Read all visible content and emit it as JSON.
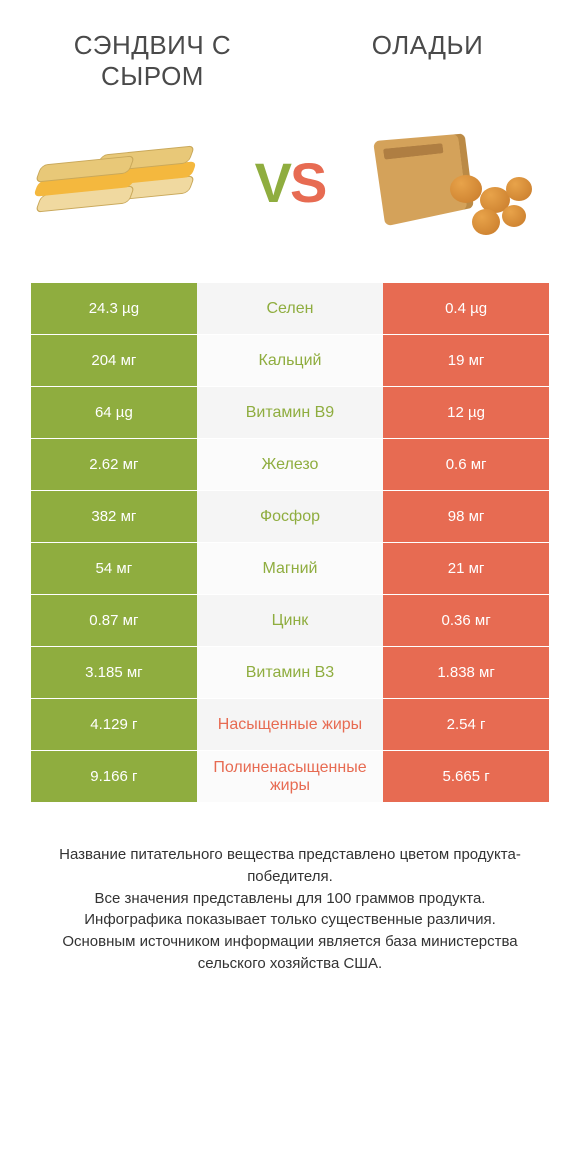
{
  "colors": {
    "left": "#8fad3f",
    "right": "#e76b52",
    "mid_bg_odd": "#f5f5f5",
    "mid_bg_even": "#fbfbfb",
    "text": "#333333"
  },
  "header": {
    "left_title": "СЭНДВИЧ С СЫРОМ",
    "right_title": "ОЛАДЬИ",
    "vs_v": "V",
    "vs_s": "S"
  },
  "rows": [
    {
      "left": "24.3 µg",
      "label": "Селен",
      "right": "0.4 µg",
      "winner": "left"
    },
    {
      "left": "204 мг",
      "label": "Кальций",
      "right": "19 мг",
      "winner": "left"
    },
    {
      "left": "64 µg",
      "label": "Витамин B9",
      "right": "12 µg",
      "winner": "left"
    },
    {
      "left": "2.62 мг",
      "label": "Железо",
      "right": "0.6 мг",
      "winner": "left"
    },
    {
      "left": "382 мг",
      "label": "Фосфор",
      "right": "98 мг",
      "winner": "left"
    },
    {
      "left": "54 мг",
      "label": "Магний",
      "right": "21 мг",
      "winner": "left"
    },
    {
      "left": "0.87 мг",
      "label": "Цинк",
      "right": "0.36 мг",
      "winner": "left"
    },
    {
      "left": "3.185 мг",
      "label": "Витамин B3",
      "right": "1.838 мг",
      "winner": "left"
    },
    {
      "left": "4.129 г",
      "label": "Насыщенные жиры",
      "right": "2.54 г",
      "winner": "right"
    },
    {
      "left": "9.166 г",
      "label": "Полиненасыщенные жиры",
      "right": "5.665 г",
      "winner": "right"
    }
  ],
  "footer": {
    "line1": "Название питательного вещества представлено цветом продукта-победителя.",
    "line2": "Все значения представлены для 100 граммов продукта.",
    "line3": "Инфографика показывает только существенные различия.",
    "line4": "Основным источником информации является база министерства сельского хозяйства США."
  }
}
